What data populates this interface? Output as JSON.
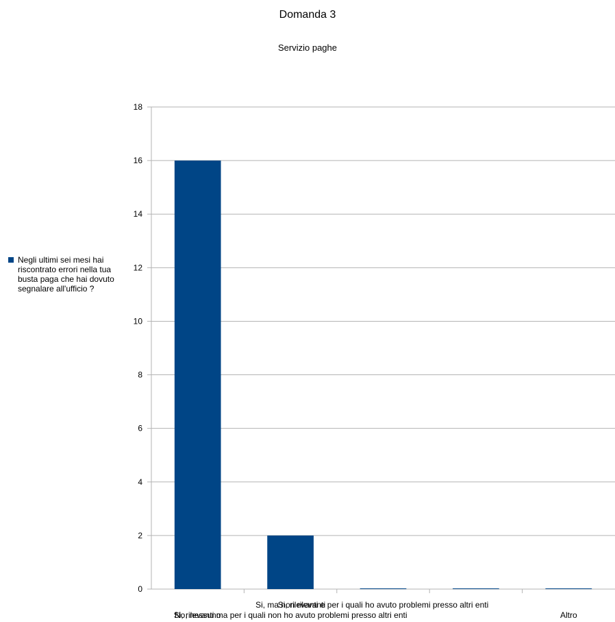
{
  "chart_data": {
    "type": "bar",
    "title": "Domanda  3",
    "subtitle": "Servizio paghe",
    "categories": [
      "No, nessuno",
      "Si, ma non rilevanti",
      "Si, rilevanti ma per i quali non ho avuto problemi presso altri enti",
      "Si, rilevanti e per i quali ho avuto problemi presso altri enti",
      "Altro"
    ],
    "category_label_lines": [
      [
        "",
        "No, nessuno"
      ],
      [
        "Si, ma non rilevanti",
        "Si, rilevanti ma per i quali non ho avuto problemi presso altri enti"
      ],
      [
        "Si, rilevanti e per i quali ho avuto problemi presso altri enti",
        ""
      ],
      [
        "",
        ""
      ],
      [
        "",
        "Altro"
      ]
    ],
    "series": [
      {
        "name": "Negli ultimi sei mesi hai riscontrato errori nella tua busta paga che hai dovuto segnalare all'ufficio ?",
        "values": [
          16,
          2,
          0,
          0,
          0
        ],
        "color": "#004586"
      }
    ],
    "ylim": [
      0,
      18
    ],
    "yticks": [
      0,
      2,
      4,
      6,
      8,
      10,
      12,
      14,
      16,
      18
    ],
    "grid": true,
    "legend_position": "left"
  }
}
